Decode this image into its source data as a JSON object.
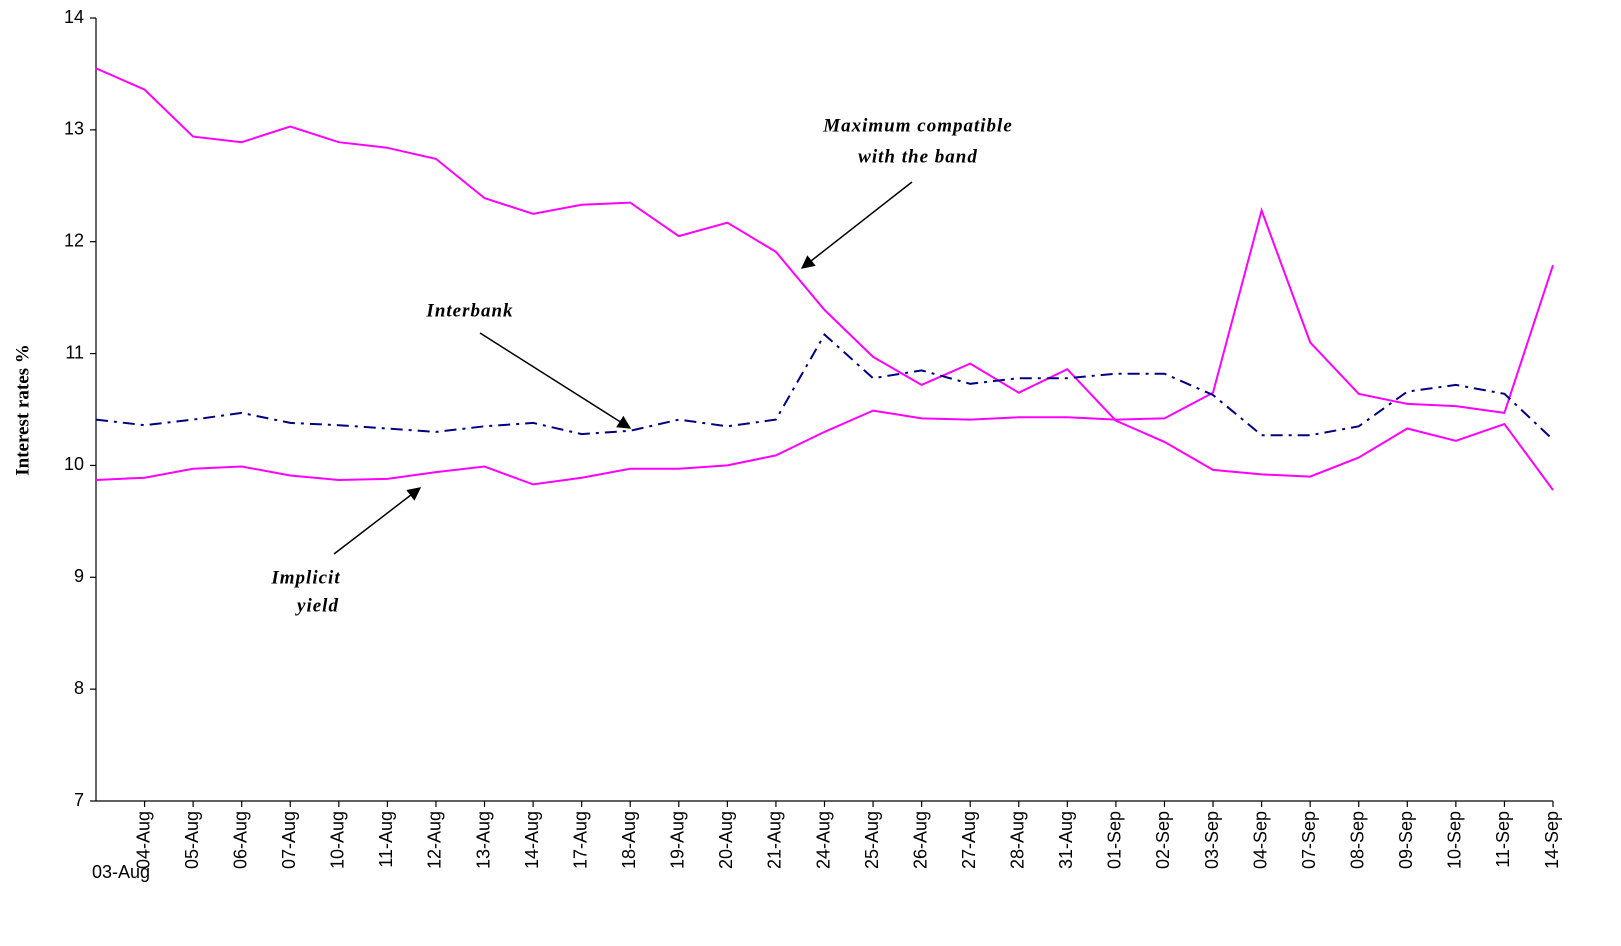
{
  "chart_data": {
    "type": "line",
    "y_label": "Interest rates %",
    "categories": [
      "03-Aug",
      "04-Aug",
      "05-Aug",
      "06-Aug",
      "07-Aug",
      "10-Aug",
      "11-Aug",
      "12-Aug",
      "13-Aug",
      "14-Aug",
      "17-Aug",
      "18-Aug",
      "19-Aug",
      "20-Aug",
      "21-Aug",
      "24-Aug",
      "25-Aug",
      "26-Aug",
      "27-Aug",
      "28-Aug",
      "31-Aug",
      "01-Sep",
      "02-Sep",
      "03-Sep",
      "04-Sep",
      "07-Sep",
      "08-Sep",
      "09-Sep",
      "10-Sep",
      "11-Sep",
      "14-Sep"
    ],
    "series": [
      {
        "color": "#ff00ff",
        "style": "solid",
        "values": [
          13.55,
          13.36,
          12.94,
          12.89,
          13.03,
          12.89,
          12.84,
          12.74,
          12.39,
          12.25,
          12.33,
          12.35,
          12.05,
          12.17,
          11.91,
          11.39,
          10.97,
          10.72,
          10.91,
          10.65,
          10.86,
          10.4,
          10.21,
          9.96,
          9.92,
          9.9,
          10.07,
          10.33,
          10.22,
          10.37,
          9.78
        ]
      },
      {
        "color": "#ff00ff",
        "style": "solid",
        "values": [
          9.87,
          9.89,
          9.97,
          9.99,
          9.91,
          9.87,
          9.88,
          9.94,
          9.99,
          9.83,
          9.89,
          9.97,
          9.97,
          10.0,
          10.09,
          10.3,
          10.49,
          10.42,
          10.41,
          10.43,
          10.43,
          10.41,
          10.42,
          10.65,
          12.28,
          11.1,
          10.64,
          10.55,
          10.53,
          10.47,
          11.79
        ]
      },
      {
        "color": "#000080",
        "style": "dashdot",
        "values": [
          10.41,
          10.36,
          10.41,
          10.47,
          10.38,
          10.36,
          10.33,
          10.3,
          10.35,
          10.38,
          10.28,
          10.31,
          10.41,
          10.35,
          10.41,
          11.17,
          10.78,
          10.85,
          10.73,
          10.78,
          10.78,
          10.82,
          10.82,
          10.63,
          10.27,
          10.27,
          10.35,
          10.66,
          10.72,
          10.64,
          10.23
        ]
      }
    ],
    "annotations": [
      [
        "Maximum compatible",
        "with the band"
      ],
      [
        "Interbank"
      ],
      [
        "Implicit",
        "yield"
      ]
    ],
    "ylim": [
      7,
      14
    ],
    "yticks": [
      7,
      8,
      9,
      10,
      11,
      12,
      13,
      14
    ],
    "grid": false
  }
}
